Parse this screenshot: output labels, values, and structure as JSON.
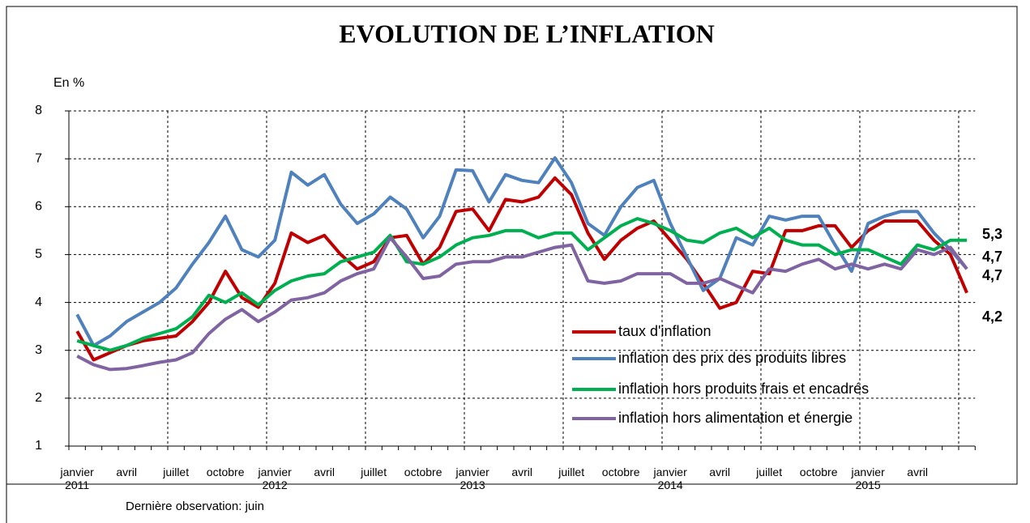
{
  "chart_data": {
    "type": "line",
    "title": "EVOLUTION DE L’INFLATION",
    "y_label": "En %",
    "note": "Dernière observation: juin",
    "categories": [
      "janvier\n2011",
      null,
      null,
      "avril",
      null,
      null,
      "juillet",
      null,
      null,
      "octobre",
      null,
      null,
      "janvier\n2012",
      null,
      null,
      "avril",
      null,
      null,
      "juillet",
      null,
      null,
      "octobre",
      null,
      null,
      "janvier\n2013",
      null,
      null,
      "avril",
      null,
      null,
      "juillet",
      null,
      null,
      "octobre",
      null,
      null,
      "janvier\n2014",
      null,
      null,
      "avril",
      null,
      null,
      "juillet",
      null,
      null,
      "octobre",
      null,
      null,
      "janvier\n2015",
      null,
      null,
      "avril",
      null,
      null,
      null
    ],
    "series": [
      {
        "name": "taux d'inflation",
        "color": "#c00000",
        "end_label": "4,2",
        "values": [
          3.4,
          2.8,
          2.95,
          3.1,
          3.2,
          3.25,
          3.3,
          3.6,
          4.0,
          4.65,
          4.1,
          3.9,
          4.4,
          5.45,
          5.25,
          5.4,
          5.0,
          4.7,
          4.85,
          5.35,
          5.4,
          4.8,
          5.15,
          5.9,
          5.95,
          5.5,
          6.15,
          6.1,
          6.2,
          6.6,
          6.25,
          5.45,
          4.9,
          5.3,
          5.55,
          5.7,
          5.3,
          4.9,
          4.4,
          3.88,
          4.0,
          4.65,
          4.6,
          5.5,
          5.5,
          5.6,
          5.6,
          5.15,
          5.5,
          5.7,
          5.7,
          5.7,
          5.3,
          5.0,
          4.2
        ]
      },
      {
        "name": "inflation des prix des produits libres",
        "color": "#4f81bd",
        "end_label": "4,7",
        "values": [
          3.75,
          3.1,
          3.3,
          3.6,
          3.8,
          4.0,
          4.3,
          4.8,
          5.25,
          5.8,
          5.1,
          4.95,
          5.3,
          6.72,
          6.45,
          6.67,
          6.05,
          5.65,
          5.85,
          6.2,
          5.95,
          5.35,
          5.8,
          6.77,
          6.75,
          6.1,
          6.67,
          6.55,
          6.5,
          7.02,
          6.5,
          5.65,
          5.4,
          6.0,
          6.4,
          6.55,
          5.65,
          4.95,
          4.25,
          4.5,
          5.35,
          5.2,
          5.8,
          5.72,
          5.8,
          5.8,
          5.2,
          4.65,
          5.65,
          5.8,
          5.9,
          5.9,
          5.45,
          5.1,
          4.7
        ]
      },
      {
        "name": "inflation hors produits frais et encadrés",
        "color": "#00b050",
        "end_label": "5,3",
        "values": [
          3.2,
          3.1,
          3.0,
          3.1,
          3.25,
          3.35,
          3.45,
          3.7,
          4.15,
          4.0,
          4.2,
          3.95,
          4.25,
          4.45,
          4.55,
          4.6,
          4.85,
          4.95,
          5.05,
          5.4,
          4.85,
          4.8,
          4.95,
          5.2,
          5.35,
          5.4,
          5.5,
          5.5,
          5.35,
          5.45,
          5.45,
          5.1,
          5.35,
          5.6,
          5.75,
          5.65,
          5.5,
          5.3,
          5.25,
          5.45,
          5.55,
          5.35,
          5.55,
          5.3,
          5.2,
          5.2,
          5.0,
          5.1,
          5.1,
          4.95,
          4.8,
          5.2,
          5.1,
          5.3,
          5.3
        ]
      },
      {
        "name": "inflation hors alimentation et énergie",
        "color": "#8064a2",
        "end_label": "4,7",
        "values": [
          2.88,
          2.7,
          2.6,
          2.62,
          2.68,
          2.75,
          2.8,
          2.95,
          3.35,
          3.65,
          3.85,
          3.6,
          3.8,
          4.05,
          4.1,
          4.2,
          4.45,
          4.6,
          4.7,
          5.35,
          4.95,
          4.5,
          4.55,
          4.8,
          4.85,
          4.85,
          4.95,
          4.95,
          5.05,
          5.15,
          5.2,
          4.45,
          4.4,
          4.45,
          4.6,
          4.6,
          4.6,
          4.4,
          4.4,
          4.5,
          4.35,
          4.2,
          4.7,
          4.65,
          4.8,
          4.9,
          4.7,
          4.8,
          4.7,
          4.8,
          4.7,
          5.1,
          5.0,
          5.15,
          4.7
        ]
      }
    ],
    "ylim": [
      1,
      8
    ],
    "yticks": [
      1,
      2,
      3,
      4,
      5,
      6,
      7,
      8
    ],
    "grid": true,
    "legend": "lower right"
  }
}
